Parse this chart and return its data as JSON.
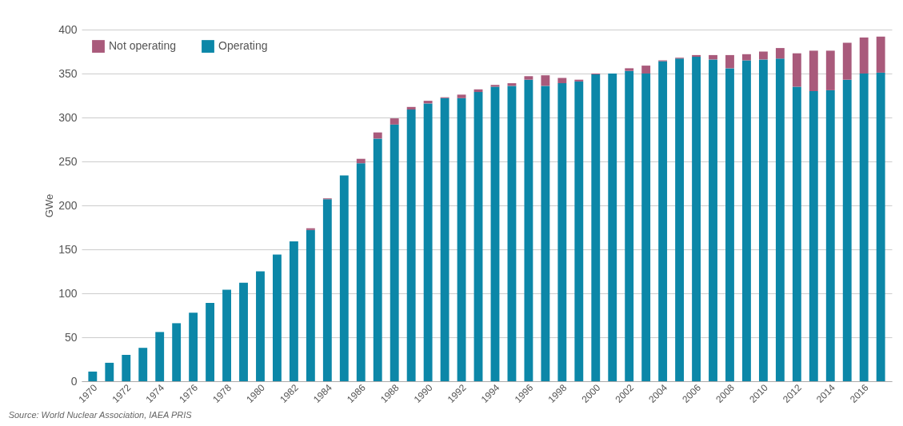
{
  "chart_data": {
    "type": "bar",
    "stacked": true,
    "ylabel": "GWe",
    "categories": [
      "1970",
      null,
      "1972",
      null,
      "1974",
      null,
      "1976",
      null,
      "1978",
      null,
      "1980",
      null,
      "1982",
      null,
      "1984",
      null,
      "1986",
      null,
      "1988",
      null,
      "1990",
      null,
      "1992",
      null,
      "1994",
      null,
      "1996",
      null,
      "1998",
      null,
      "2000",
      null,
      "2002",
      null,
      "2004",
      null,
      "2006",
      null,
      "2008",
      null,
      "2010",
      null,
      "2012",
      null,
      "2014",
      null,
      "2016",
      null
    ],
    "series": [
      {
        "name": "Operating",
        "color": "#0c87a8",
        "values": [
          11,
          21,
          30,
          38,
          56,
          66,
          78,
          89,
          104,
          112,
          125,
          144,
          159,
          172,
          207,
          234,
          248,
          276,
          292,
          309,
          316,
          322,
          322,
          329,
          335,
          336,
          343,
          336,
          339,
          341,
          349,
          350,
          353,
          350,
          364,
          367,
          369,
          366,
          356,
          365,
          366,
          367,
          335,
          330,
          331,
          343,
          350,
          351
        ]
      },
      {
        "name": "Not operating",
        "color": "#a95a7b",
        "values": [
          0,
          0,
          0,
          0,
          0,
          0,
          0,
          0,
          0,
          0,
          0,
          0,
          0,
          2,
          1,
          0,
          5,
          7,
          7,
          3,
          3,
          1,
          4,
          3,
          2,
          3,
          4,
          12,
          6,
          2,
          1,
          0,
          3,
          9,
          1,
          1,
          2,
          5,
          15,
          7,
          9,
          12,
          38,
          46,
          45,
          42,
          41,
          41
        ]
      }
    ],
    "ylim": [
      0,
      400
    ],
    "yticks": [
      0,
      50,
      100,
      150,
      200,
      250,
      300,
      350,
      400
    ],
    "grid": "y",
    "legend": "top left",
    "annotations": [
      "Source: World Nuclear Association, IAEA PRIS"
    ]
  }
}
